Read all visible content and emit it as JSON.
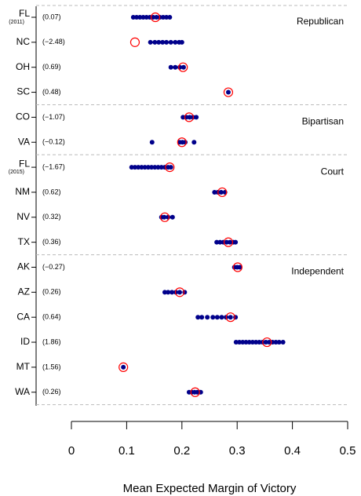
{
  "chart_data": {
    "type": "strip",
    "x_label": "Mean Expected Margin of Victory",
    "xlim": [
      0,
      0.5
    ],
    "xticks": [
      0,
      0.1,
      0.2,
      0.3,
      0.4,
      0.5
    ],
    "point_color": "#00008b",
    "enacted_color": "#ff0000",
    "groups": [
      {
        "name": "Republican",
        "rows": [
          {
            "label": "FL",
            "sublabel": "(2011)",
            "score": "(0.07)",
            "enacted": 0.152,
            "simulations": [
              0.112,
              0.118,
              0.124,
              0.13,
              0.136,
              0.142,
              0.148,
              0.154,
              0.16,
              0.166,
              0.172,
              0.178
            ]
          },
          {
            "label": "NC",
            "score": "(−2.48)",
            "enacted": 0.115,
            "simulations": [
              0.143,
              0.151,
              0.158,
              0.165,
              0.172,
              0.18,
              0.188,
              0.195,
              0.2
            ]
          },
          {
            "label": "OH",
            "score": "(0.69)",
            "enacted": 0.202,
            "simulations": [
              0.18,
              0.188,
              0.196,
              0.203
            ]
          },
          {
            "label": "SC",
            "score": "(0.48)",
            "enacted": 0.284,
            "simulations": [
              0.284
            ]
          }
        ]
      },
      {
        "name": "Bipartisan",
        "rows": [
          {
            "label": "CO",
            "score": "(−1.07)",
            "enacted": 0.213,
            "simulations": [
              0.202,
              0.208,
              0.214,
              0.22,
              0.226
            ]
          },
          {
            "label": "VA",
            "score": "(−0.12)",
            "enacted": 0.2,
            "simulations": [
              0.146,
              0.196,
              0.201,
              0.206,
              0.222
            ]
          }
        ]
      },
      {
        "name": "Court",
        "rows": [
          {
            "label": "FL",
            "sublabel": "(2015)",
            "score": "(−1.67)",
            "enacted": 0.178,
            "simulations": [
              0.109,
              0.115,
              0.121,
              0.127,
              0.133,
              0.139,
              0.145,
              0.151,
              0.157,
              0.163,
              0.169,
              0.175,
              0.18
            ]
          },
          {
            "label": "NM",
            "score": "(0.62)",
            "enacted": 0.273,
            "simulations": [
              0.259,
              0.265,
              0.271,
              0.278
            ]
          },
          {
            "label": "NV",
            "score": "(0.32)",
            "enacted": 0.169,
            "simulations": [
              0.163,
              0.168,
              0.175,
              0.183
            ]
          },
          {
            "label": "TX",
            "score": "(0.36)",
            "enacted": 0.284,
            "simulations": [
              0.263,
              0.269,
              0.275,
              0.281,
              0.287,
              0.293,
              0.297
            ]
          }
        ]
      },
      {
        "name": "Independent",
        "rows": [
          {
            "label": "AK",
            "score": "(−0.27)",
            "enacted": 0.301,
            "simulations": [
              0.295,
              0.3,
              0.305
            ]
          },
          {
            "label": "AZ",
            "score": "(0.26)",
            "enacted": 0.196,
            "simulations": [
              0.169,
              0.175,
              0.182,
              0.189,
              0.196,
              0.205
            ]
          },
          {
            "label": "CA",
            "score": "(0.64)",
            "enacted": 0.288,
            "simulations": [
              0.229,
              0.236,
              0.246,
              0.256,
              0.264,
              0.272,
              0.28,
              0.288,
              0.297
            ]
          },
          {
            "label": "ID",
            "score": "(1.86)",
            "enacted": 0.354,
            "simulations": [
              0.298,
              0.304,
              0.31,
              0.316,
              0.322,
              0.328,
              0.334,
              0.34,
              0.346,
              0.352,
              0.358,
              0.364,
              0.37,
              0.376,
              0.383
            ]
          },
          {
            "label": "MT",
            "score": "(1.56)",
            "enacted": 0.094,
            "simulations": [
              0.094
            ]
          },
          {
            "label": "WA",
            "score": "(0.26)",
            "enacted": 0.224,
            "simulations": [
              0.213,
              0.218,
              0.223,
              0.228,
              0.234
            ]
          }
        ]
      }
    ]
  }
}
